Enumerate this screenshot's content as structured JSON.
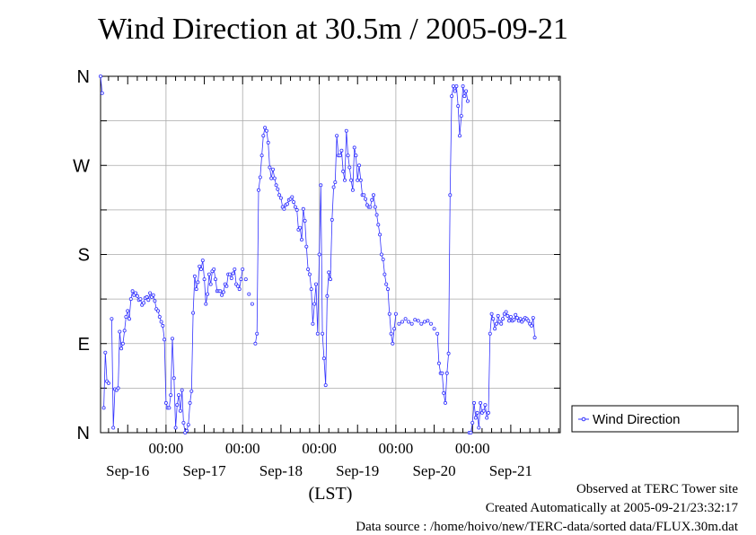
{
  "chart_data": {
    "type": "line",
    "title": "Wind Direction at 30.5m / 2005-09-21",
    "xlabel": "(LST)",
    "y_ticks": [
      "N",
      "W",
      "S",
      "E",
      "N"
    ],
    "y_tick_values": [
      360,
      270,
      180,
      90,
      0
    ],
    "ylim": [
      0,
      360
    ],
    "xlim": [
      0,
      288
    ],
    "x_ticks_time": [
      "00:00",
      "00:00",
      "00:00",
      "00:00",
      "00:00"
    ],
    "x_ticks_time_hours": [
      41,
      89,
      137,
      185,
      233
    ],
    "x_ticks_date": [
      "Sep-16",
      "Sep-17",
      "Sep-18",
      "Sep-19",
      "Sep-20",
      "Sep-21"
    ],
    "x_ticks_date_hours": [
      17,
      65,
      113,
      161,
      209,
      257
    ],
    "grid": true,
    "legend": "right",
    "series": [
      {
        "name": "Wind Direction",
        "color": "#3333ff",
        "points": [
          [
            0,
            360
          ],
          [
            1,
            343
          ],
          [
            2,
            25
          ],
          [
            3,
            81
          ],
          [
            4,
            52
          ],
          [
            5,
            50
          ],
          [
            7,
            115
          ],
          [
            8,
            5
          ],
          [
            9,
            44
          ],
          [
            10,
            43
          ],
          [
            11,
            45
          ],
          [
            12,
            102
          ],
          [
            13,
            85
          ],
          [
            14,
            90
          ],
          [
            15,
            103
          ],
          [
            16,
            117
          ],
          [
            17,
            123
          ],
          [
            18,
            115
          ],
          [
            19,
            135
          ],
          [
            20,
            143
          ],
          [
            21,
            139
          ],
          [
            22,
            141
          ],
          [
            23,
            138
          ],
          [
            24,
            134
          ],
          [
            25,
            135
          ],
          [
            26,
            129
          ],
          [
            27,
            131
          ],
          [
            28,
            136
          ],
          [
            29,
            137
          ],
          [
            30,
            134
          ],
          [
            31,
            141
          ],
          [
            32,
            137
          ],
          [
            33,
            139
          ],
          [
            34,
            133
          ],
          [
            35,
            125
          ],
          [
            36,
            123
          ],
          [
            37,
            117
          ],
          [
            38,
            112
          ],
          [
            39,
            108
          ],
          [
            40,
            94
          ],
          [
            41,
            30
          ],
          [
            42,
            25
          ],
          [
            43,
            25
          ],
          [
            44,
            38
          ],
          [
            45,
            95
          ],
          [
            46,
            55
          ],
          [
            47,
            5
          ],
          [
            48,
            28
          ],
          [
            49,
            38
          ],
          [
            50,
            22
          ],
          [
            51,
            43
          ],
          [
            52,
            10
          ],
          [
            53,
            0
          ],
          [
            54,
            2
          ],
          [
            55,
            8
          ],
          [
            56,
            30
          ],
          [
            57,
            42
          ],
          [
            58,
            121
          ],
          [
            59,
            158
          ],
          [
            60,
            145
          ],
          [
            61,
            152
          ],
          [
            62,
            168
          ],
          [
            63,
            165
          ],
          [
            64,
            174
          ],
          [
            65,
            155
          ],
          [
            66,
            130
          ],
          [
            67,
            140
          ],
          [
            68,
            160
          ],
          [
            69,
            150
          ],
          [
            70,
            163
          ],
          [
            71,
            165
          ],
          [
            72,
            155
          ],
          [
            73,
            143
          ],
          [
            74,
            143
          ],
          [
            75,
            143
          ],
          [
            76,
            139
          ],
          [
            77,
            142
          ],
          [
            78,
            150
          ],
          [
            79,
            148
          ],
          [
            80,
            160
          ],
          [
            81,
            160
          ],
          [
            82,
            156
          ],
          [
            83,
            161
          ],
          [
            84,
            165
          ],
          [
            85,
            150
          ],
          [
            86,
            148
          ],
          [
            87,
            145
          ],
          [
            88,
            155
          ],
          [
            89,
            165
          ],
          [
            91,
            155
          ],
          [
            93,
            140
          ],
          [
            95,
            130
          ],
          [
            97,
            90
          ],
          [
            98,
            100
          ],
          [
            99,
            245
          ],
          [
            100,
            258
          ],
          [
            101,
            280
          ],
          [
            102,
            300
          ],
          [
            103,
            308
          ],
          [
            104,
            305
          ],
          [
            105,
            293
          ],
          [
            106,
            268
          ],
          [
            107,
            257
          ],
          [
            108,
            266
          ],
          [
            109,
            257
          ],
          [
            110,
            250
          ],
          [
            111,
            246
          ],
          [
            112,
            240
          ],
          [
            113,
            237
          ],
          [
            114,
            228
          ],
          [
            115,
            226
          ],
          [
            116,
            230
          ],
          [
            117,
            231
          ],
          [
            118,
            235
          ],
          [
            119,
            236
          ],
          [
            120,
            238
          ],
          [
            121,
            233
          ],
          [
            122,
            228
          ],
          [
            123,
            225
          ],
          [
            124,
            205
          ],
          [
            125,
            207
          ],
          [
            126,
            195
          ],
          [
            127,
            226
          ],
          [
            128,
            214
          ],
          [
            129,
            188
          ],
          [
            130,
            165
          ],
          [
            131,
            160
          ],
          [
            132,
            145
          ],
          [
            133,
            110
          ],
          [
            134,
            130
          ],
          [
            135,
            150
          ],
          [
            136,
            100
          ],
          [
            137,
            180
          ],
          [
            138,
            250
          ],
          [
            139,
            100
          ],
          [
            140,
            75
          ],
          [
            141,
            48
          ],
          [
            142,
            138
          ],
          [
            143,
            162
          ],
          [
            144,
            155
          ],
          [
            145,
            215
          ],
          [
            146,
            248
          ],
          [
            147,
            253
          ],
          [
            148,
            300
          ],
          [
            149,
            280
          ],
          [
            150,
            280
          ],
          [
            151,
            285
          ],
          [
            152,
            264
          ],
          [
            153,
            255
          ],
          [
            154,
            305
          ],
          [
            155,
            280
          ],
          [
            156,
            268
          ],
          [
            157,
            255
          ],
          [
            158,
            245
          ],
          [
            159,
            288
          ],
          [
            160,
            280
          ],
          [
            161,
            255
          ],
          [
            162,
            270
          ],
          [
            163,
            255
          ],
          [
            164,
            240
          ],
          [
            165,
            240
          ],
          [
            166,
            236
          ],
          [
            167,
            230
          ],
          [
            168,
            228
          ],
          [
            169,
            228
          ],
          [
            170,
            235
          ],
          [
            171,
            240
          ],
          [
            172,
            228
          ],
          [
            173,
            220
          ],
          [
            174,
            210
          ],
          [
            175,
            200
          ],
          [
            176,
            180
          ],
          [
            177,
            175
          ],
          [
            178,
            160
          ],
          [
            179,
            150
          ],
          [
            180,
            145
          ],
          [
            181,
            120
          ],
          [
            182,
            100
          ],
          [
            183,
            90
          ],
          [
            184,
            105
          ],
          [
            185,
            120
          ],
          [
            187,
            110
          ],
          [
            189,
            112
          ],
          [
            191,
            115
          ],
          [
            193,
            112
          ],
          [
            195,
            110
          ],
          [
            197,
            114
          ],
          [
            199,
            113
          ],
          [
            201,
            110
          ],
          [
            203,
            112
          ],
          [
            205,
            113
          ],
          [
            207,
            110
          ],
          [
            209,
            105
          ],
          [
            211,
            100
          ],
          [
            212,
            70
          ],
          [
            213,
            60
          ],
          [
            214,
            60
          ],
          [
            215,
            40
          ],
          [
            216,
            30
          ],
          [
            217,
            60
          ],
          [
            218,
            80
          ],
          [
            219,
            240
          ],
          [
            220,
            340
          ],
          [
            221,
            350
          ],
          [
            222,
            345
          ],
          [
            223,
            350
          ],
          [
            224,
            330
          ],
          [
            225,
            300
          ],
          [
            226,
            320
          ],
          [
            227,
            350
          ],
          [
            228,
            340
          ],
          [
            229,
            345
          ],
          [
            230,
            335
          ],
          [
            231,
            0
          ],
          [
            232,
            0
          ],
          [
            233,
            10
          ],
          [
            234,
            30
          ],
          [
            235,
            15
          ],
          [
            236,
            20
          ],
          [
            237,
            5
          ],
          [
            238,
            30
          ],
          [
            239,
            20
          ],
          [
            240,
            22
          ],
          [
            241,
            28
          ],
          [
            242,
            15
          ],
          [
            243,
            20
          ],
          [
            244,
            100
          ],
          [
            245,
            120
          ],
          [
            246,
            115
          ],
          [
            247,
            105
          ],
          [
            248,
            110
          ],
          [
            249,
            118
          ],
          [
            250,
            112
          ],
          [
            251,
            110
          ],
          [
            252,
            115
          ],
          [
            253,
            120
          ],
          [
            254,
            122
          ],
          [
            255,
            118
          ],
          [
            256,
            113
          ],
          [
            257,
            117
          ],
          [
            258,
            113
          ],
          [
            259,
            114
          ],
          [
            260,
            119
          ],
          [
            261,
            116
          ],
          [
            262,
            113
          ],
          [
            263,
            115
          ],
          [
            264,
            112
          ],
          [
            265,
            114
          ],
          [
            266,
            116
          ],
          [
            267,
            115
          ],
          [
            268,
            113
          ],
          [
            269,
            110
          ],
          [
            270,
            108
          ],
          [
            271,
            116
          ],
          [
            272,
            96
          ]
        ]
      }
    ]
  },
  "footer": {
    "line1": "Observed at TERC Tower site",
    "line2": "Created Automatically at 2005-09-21/23:32:17",
    "line3": "Data source : /home/hoivo/new/TERC-data/sorted  data/FLUX.30m.dat"
  }
}
